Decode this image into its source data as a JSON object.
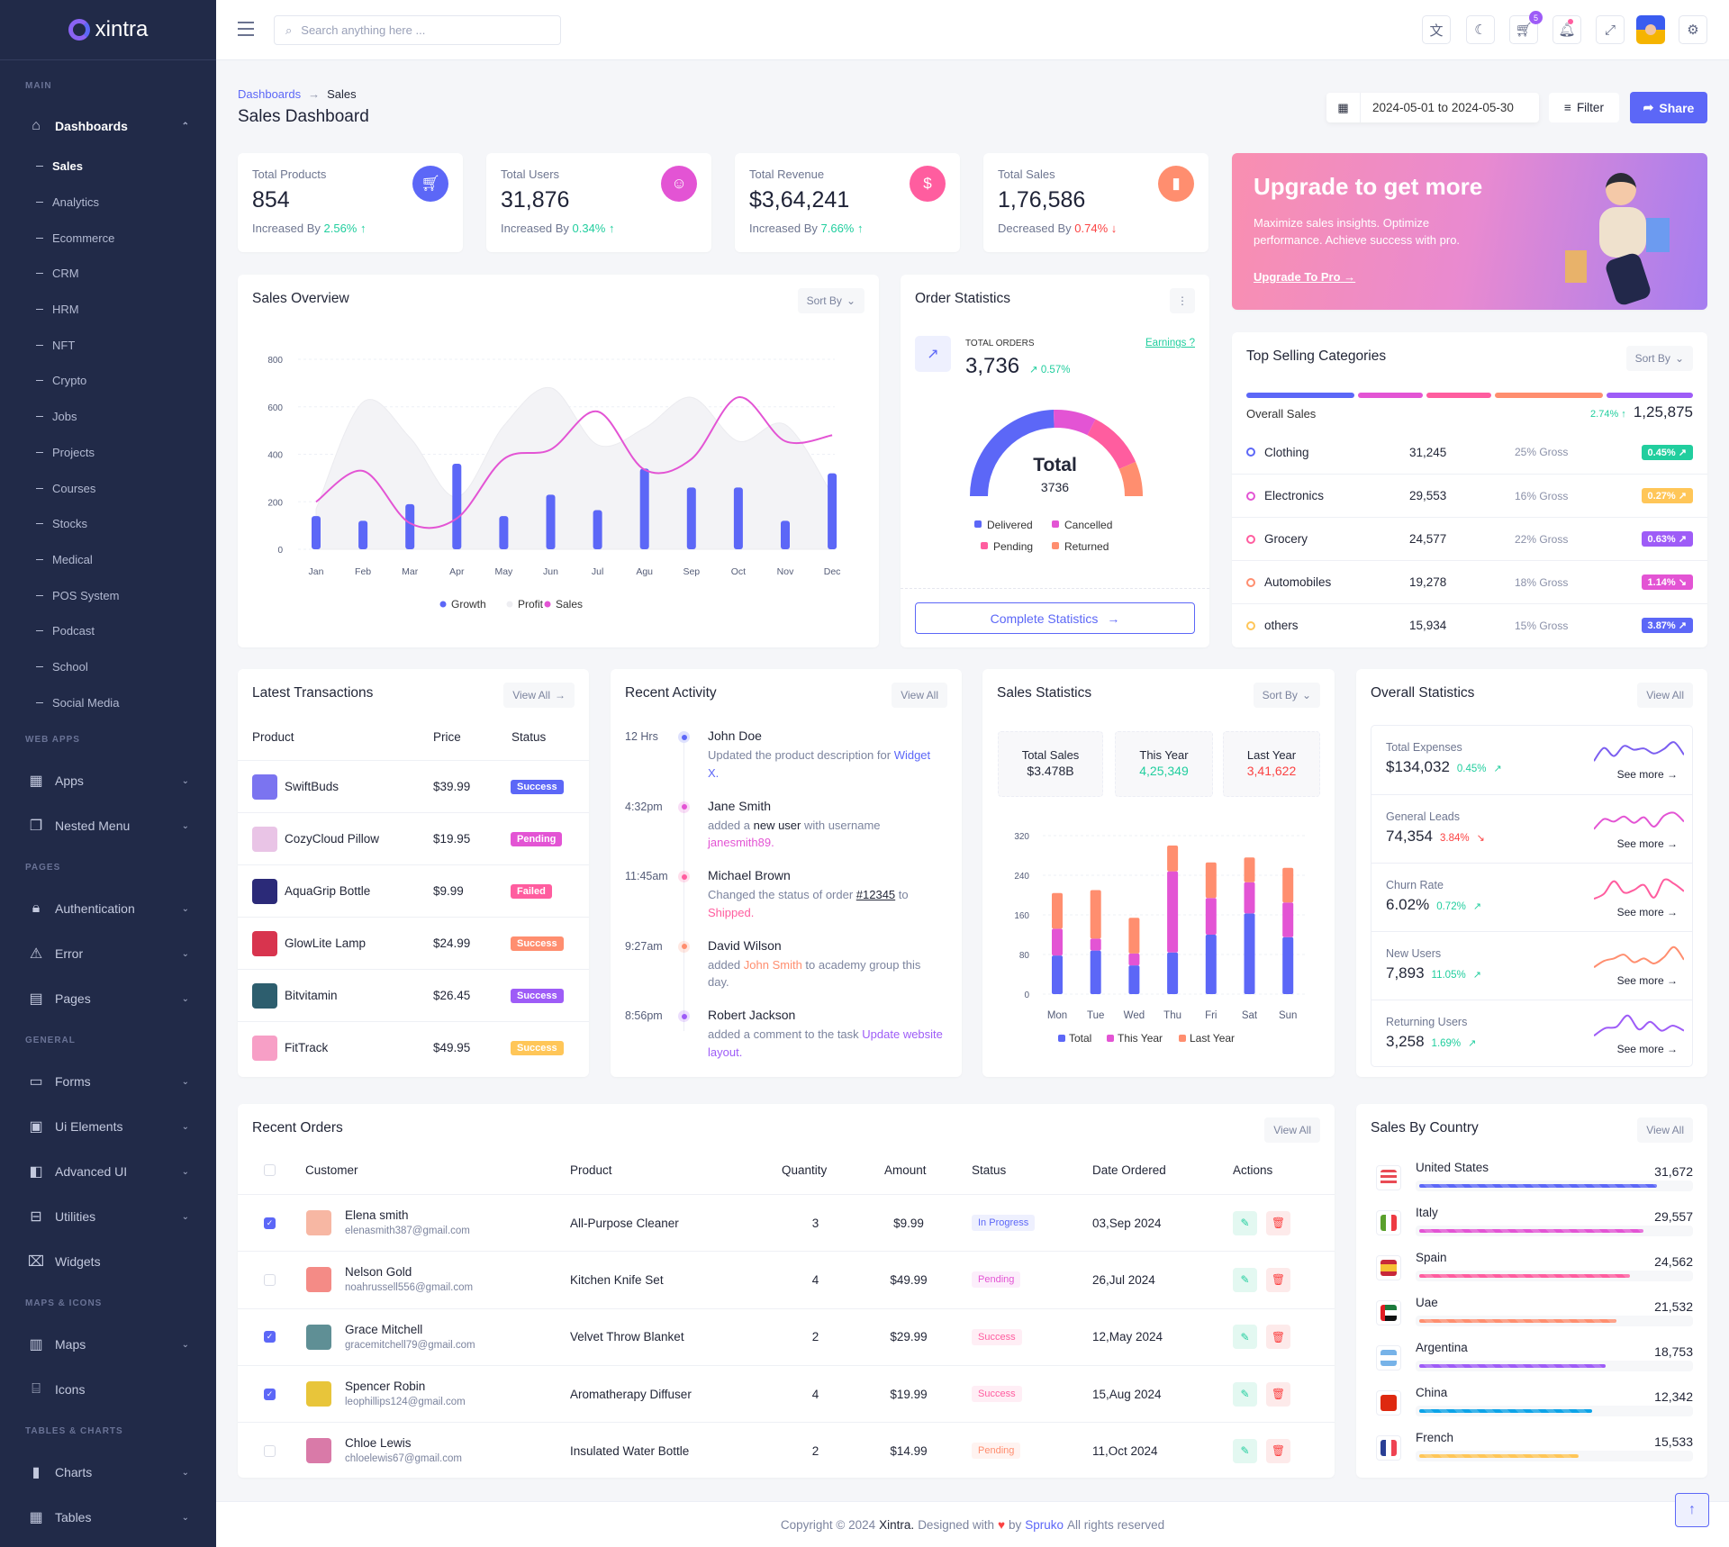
{
  "app": {
    "logo_text": "xintra"
  },
  "header": {
    "search_placeholder": "Search anything here ...",
    "cart_count": "5",
    "icons": [
      "translate-icon",
      "moon-icon",
      "cart-icon",
      "bell-icon",
      "fullscreen-icon",
      "avatar",
      "gear-icon"
    ]
  },
  "sidebar": {
    "sections": [
      {
        "label": "MAIN",
        "items": [
          {
            "label": "Dashboards",
            "icon": "home-icon",
            "expanded": true,
            "children": [
              "Sales",
              "Analytics",
              "Ecommerce",
              "CRM",
              "HRM",
              "NFT",
              "Crypto",
              "Jobs",
              "Projects",
              "Courses",
              "Stocks",
              "Medical",
              "POS System",
              "Podcast",
              "School",
              "Social Media"
            ],
            "active_child": "Sales"
          }
        ]
      },
      {
        "label": "WEB APPS",
        "items": [
          {
            "label": "Apps",
            "icon": "apps-icon",
            "chevron": true
          },
          {
            "label": "Nested Menu",
            "icon": "nested-menu-icon",
            "chevron": true
          }
        ]
      },
      {
        "label": "PAGES",
        "items": [
          {
            "label": "Authentication",
            "icon": "lock-icon",
            "chevron": true
          },
          {
            "label": "Error",
            "icon": "warning-icon",
            "chevron": true
          },
          {
            "label": "Pages",
            "icon": "pages-icon",
            "chevron": true
          }
        ]
      },
      {
        "label": "GENERAL",
        "items": [
          {
            "label": "Forms",
            "icon": "clipboard-icon",
            "chevron": true
          },
          {
            "label": "Ui Elements",
            "icon": "box-icon",
            "chevron": true
          },
          {
            "label": "Advanced UI",
            "icon": "layers-icon",
            "chevron": true
          },
          {
            "label": "Utilities",
            "icon": "inbox-icon",
            "chevron": true
          },
          {
            "label": "Widgets",
            "icon": "gift-icon",
            "chevron": false
          }
        ]
      },
      {
        "label": "MAPS & ICONS",
        "items": [
          {
            "label": "Maps",
            "icon": "map-icon",
            "chevron": true
          },
          {
            "label": "Icons",
            "icon": "store-icon",
            "chevron": false
          }
        ]
      },
      {
        "label": "TABLES & CHARTS",
        "items": [
          {
            "label": "Charts",
            "icon": "bar-chart-icon",
            "chevron": true
          },
          {
            "label": "Tables",
            "icon": "table-icon",
            "chevron": true
          }
        ]
      }
    ]
  },
  "page": {
    "breadcrumb": [
      "Dashboards",
      "Sales"
    ],
    "title": "Sales Dashboard",
    "date_range": "2024-05-01 to 2024-05-30",
    "filter_label": "Filter",
    "share_label": "Share"
  },
  "stats": [
    {
      "label": "Total Products",
      "value": "854",
      "trend_text": "Increased By",
      "change": "2.56%",
      "direction": "up",
      "icon": "cart-icon",
      "color": "#5c67f7"
    },
    {
      "label": "Total Users",
      "value": "31,876",
      "trend_text": "Increased By",
      "change": "0.34%",
      "direction": "up",
      "icon": "users-icon",
      "color": "#e354d4"
    },
    {
      "label": "Total Revenue",
      "value": "$3,64,241",
      "trend_text": "Increased By",
      "change": "7.66%",
      "direction": "up",
      "icon": "dollar-icon",
      "color": "#ff5d9f"
    },
    {
      "label": "Total Sales",
      "value": "1,76,586",
      "trend_text": "Decreased By",
      "change": "0.74%",
      "direction": "down",
      "icon": "bar-chart-icon",
      "color": "#ff8e6f"
    }
  ],
  "banner": {
    "title": "Upgrade to get more",
    "text": "Maximize sales insights. Optimize performance. Achieve success with pro.",
    "link": "Upgrade To Pro"
  },
  "sales_overview": {
    "title": "Sales Overview",
    "sort_label": "Sort By"
  },
  "order_statistics": {
    "title": "Order Statistics",
    "total_label": "TOTAL ORDERS",
    "total_value": "3,736",
    "change": "0.57%",
    "earnings_link": "Earnings ?",
    "center_title": "Total",
    "center_value": "3736",
    "button": "Complete Statistics"
  },
  "top_selling": {
    "title": "Top Selling Categories",
    "sort_label": "Sort By",
    "overall_label": "Overall Sales",
    "overall_change": "2.74%",
    "overall_value": "1,25,875",
    "segments": [
      {
        "share": 25,
        "color": "#5c67f7"
      },
      {
        "share": 15,
        "color": "#e354d4"
      },
      {
        "share": 15,
        "color": "#ff5d9f"
      },
      {
        "share": 25,
        "color": "#ff8e6f"
      },
      {
        "share": 20,
        "color": "#9e5cf7"
      }
    ],
    "rows": [
      {
        "name": "Clothing",
        "value": "31,245",
        "gross": "25% Gross",
        "change": "0.45%",
        "direction": "up",
        "color": "#5c67f7",
        "badge_color": "#21ce9e"
      },
      {
        "name": "Electronics",
        "value": "29,553",
        "gross": "16% Gross",
        "change": "0.27%",
        "direction": "up",
        "color": "#e354d4",
        "badge_color": "#ffc658"
      },
      {
        "name": "Grocery",
        "value": "24,577",
        "gross": "22% Gross",
        "change": "0.63%",
        "direction": "up",
        "color": "#ff5d9f",
        "badge_color": "#9e5cf7"
      },
      {
        "name": "Automobiles",
        "value": "19,278",
        "gross": "18% Gross",
        "change": "1.14%",
        "direction": "down",
        "color": "#ff8e6f",
        "badge_color": "#e354d4"
      },
      {
        "name": "others",
        "value": "15,934",
        "gross": "15% Gross",
        "change": "3.87%",
        "direction": "up",
        "color": "#ffc658",
        "badge_color": "#5c67f7"
      }
    ]
  },
  "transactions": {
    "title": "Latest Transactions",
    "view_all": "View All",
    "columns": [
      "Product",
      "Price",
      "Status"
    ],
    "rows": [
      {
        "product": "SwiftBuds",
        "price": "$39.99",
        "status": "Success",
        "status_color": "#5c67f7",
        "thumb_color": "#7b74f0"
      },
      {
        "product": "CozyCloud Pillow",
        "price": "$19.95",
        "status": "Pending",
        "status_color": "#e354d4",
        "thumb_color": "#e9c4e6"
      },
      {
        "product": "AquaGrip Bottle",
        "price": "$9.99",
        "status": "Failed",
        "status_color": "#ff5d9f",
        "thumb_color": "#2b2a78"
      },
      {
        "product": "GlowLite Lamp",
        "price": "$24.99",
        "status": "Success",
        "status_color": "#ff8e6f",
        "thumb_color": "#d8344e"
      },
      {
        "product": "Bitvitamin",
        "price": "$26.45",
        "status": "Success",
        "status_color": "#9e5cf7",
        "thumb_color": "#2d5e6e"
      },
      {
        "product": "FitTrack",
        "price": "$49.95",
        "status": "Success",
        "status_color": "#ffc658",
        "thumb_color": "#f79fc6"
      }
    ]
  },
  "activity": {
    "title": "Recent Activity",
    "view_all": "View All",
    "items": [
      {
        "time": "12 Hrs",
        "name": "John Doe",
        "color": "#5c67f7",
        "parts": [
          {
            "text": "Updated the product description for "
          },
          {
            "text": "Widget X.",
            "color": "#5c67f7"
          }
        ]
      },
      {
        "time": "4:32pm",
        "name": "Jane Smith",
        "color": "#e354d4",
        "parts": [
          {
            "text": "added a "
          },
          {
            "text": "new user",
            "color": "#232738"
          },
          {
            "text": " with username "
          },
          {
            "text": "janesmith89.",
            "color": "#e354d4"
          }
        ]
      },
      {
        "time": "11:45am",
        "name": "Michael Brown",
        "color": "#ff5d9f",
        "parts": [
          {
            "text": "Changed the status of order "
          },
          {
            "text": "#12345",
            "color": "#232738",
            "underline": true
          },
          {
            "text": " to "
          },
          {
            "text": "Shipped.",
            "color": "#ff5d9f"
          }
        ]
      },
      {
        "time": "9:27am",
        "name": "David Wilson",
        "color": "#ff8e6f",
        "parts": [
          {
            "text": "added "
          },
          {
            "text": "John Smith",
            "color": "#ff8e6f"
          },
          {
            "text": " to academy group this day."
          }
        ]
      },
      {
        "time": "8:56pm",
        "name": "Robert Jackson",
        "color": "#9e5cf7",
        "parts": [
          {
            "text": "added a comment to the task "
          },
          {
            "text": "Update website layout.",
            "color": "#9e5cf7"
          }
        ]
      }
    ]
  },
  "sales_statistics": {
    "title": "Sales Statistics",
    "sort_label": "Sort By",
    "boxes": [
      {
        "label": "Total Sales",
        "value": "$3.478B",
        "color": "#232738"
      },
      {
        "label": "This Year",
        "value": "4,25,349",
        "color": "#21ce9e"
      },
      {
        "label": "Last Year",
        "value": "3,41,622",
        "color": "#fb4242"
      }
    ]
  },
  "overall_statistics": {
    "title": "Overall Statistics",
    "view_all": "View All",
    "see_more": "See more",
    "items": [
      {
        "label": "Total Expenses",
        "value": "$134,032",
        "change": "0.45%",
        "direction": "up",
        "color": "#7b5ef0",
        "sparkline": [
          10,
          62,
          30,
          70,
          55,
          60,
          40,
          58,
          85,
          35
        ]
      },
      {
        "label": "General Leads",
        "value": "74,354",
        "change": "3.84%",
        "direction": "down",
        "color": "#e354d4",
        "sparkline": [
          15,
          55,
          45,
          65,
          40,
          62,
          25,
          68,
          80,
          45
        ]
      },
      {
        "label": "Churn Rate",
        "value": "6.02%",
        "change": "0.72%",
        "direction": "up",
        "color": "#ff5d9f",
        "sparkline": [
          10,
          30,
          80,
          35,
          45,
          65,
          15,
          85,
          70,
          40
        ]
      },
      {
        "label": "New Users",
        "value": "7,893",
        "change": "11.05%",
        "direction": "up",
        "color": "#ff8e6f",
        "sparkline": [
          10,
          35,
          45,
          60,
          30,
          45,
          25,
          50,
          90,
          40
        ]
      },
      {
        "label": "Returning Users",
        "value": "3,258",
        "change": "1.69%",
        "direction": "up",
        "color": "#9e5cf7",
        "sparkline": [
          10,
          40,
          45,
          90,
          35,
          65,
          30,
          50,
          30
        ]
      }
    ]
  },
  "recent_orders": {
    "title": "Recent Orders",
    "view_all": "View All",
    "columns": [
      "Customer",
      "Product",
      "Quantity",
      "Amount",
      "Status",
      "Date Ordered",
      "Actions"
    ],
    "rows": [
      {
        "name": "Elena smith",
        "email": "elenasmith387@gmail.com",
        "product": "All-Purpose Cleaner",
        "quantity": "3",
        "amount": "$9.99",
        "status": "In Progress",
        "status_color": "#5c67f7",
        "date": "03,Sep 2024",
        "checked": true,
        "avatar_color": "#f7b7a3"
      },
      {
        "name": "Nelson Gold",
        "email": "noahrussell556@gmail.com",
        "product": "Kitchen Knife Set",
        "quantity": "4",
        "amount": "$49.99",
        "status": "Pending",
        "status_color": "#e354d4",
        "date": "26,Jul 2024",
        "checked": false,
        "avatar_color": "#f48b86"
      },
      {
        "name": "Grace Mitchell",
        "email": "gracemitchell79@gmail.com",
        "product": "Velvet Throw Blanket",
        "quantity": "2",
        "amount": "$29.99",
        "status": "Success",
        "status_color": "#ff5d9f",
        "date": "12,May 2024",
        "checked": true,
        "avatar_color": "#5f8f95"
      },
      {
        "name": "Spencer Robin",
        "email": "leophillips124@gmail.com",
        "product": "Aromatherapy Diffuser",
        "quantity": "4",
        "amount": "$19.99",
        "status": "Success",
        "status_color": "#ff5d9f",
        "date": "15,Aug 2024",
        "checked": true,
        "avatar_color": "#e8c53a"
      },
      {
        "name": "Chloe Lewis",
        "email": "chloelewis67@gmail.com",
        "product": "Insulated Water Bottle",
        "quantity": "2",
        "amount": "$14.99",
        "status": "Pending",
        "status_color": "#ff8e6f",
        "date": "11,Oct 2024",
        "checked": false,
        "avatar_color": "#d97aa8"
      }
    ]
  },
  "sales_by_country": {
    "title": "Sales By Country",
    "view_all": "View All",
    "rows": [
      {
        "country": "United States",
        "value": "31,672",
        "progress": 88,
        "color": "#5c67f7",
        "flag": "us"
      },
      {
        "country": "Italy",
        "value": "29,557",
        "progress": 83,
        "color": "#e354d4",
        "flag": "it"
      },
      {
        "country": "Spain",
        "value": "24,562",
        "progress": 78,
        "color": "#ff5d9f",
        "flag": "es"
      },
      {
        "country": "Uae",
        "value": "21,532",
        "progress": 73,
        "color": "#ff8e6f",
        "flag": "ae"
      },
      {
        "country": "Argentina",
        "value": "18,753",
        "progress": 69,
        "color": "#9e5cf7",
        "flag": "ar"
      },
      {
        "country": "China",
        "value": "12,342",
        "progress": 64,
        "color": "#0ca3e7",
        "flag": "cn"
      },
      {
        "country": "French",
        "value": "15,533",
        "progress": 59,
        "color": "#ffc658",
        "flag": "fr"
      }
    ]
  },
  "footer": {
    "prefix": "Copyright © 2024",
    "brand": "Xintra.",
    "designed": "Designed with",
    "by": "by",
    "author": "Spruko",
    "suffix": "All rights reserved"
  },
  "colors": {
    "primary": "#5c67f7",
    "secondary": "#e354d4",
    "pink": "#ff5d9f",
    "orange": "#ff8e6f",
    "purple": "#9e5cf7",
    "success": "#21ce9e",
    "danger": "#fb4242",
    "sidebar": "#212a48"
  },
  "chart_data": [
    {
      "type": "bar+line+area",
      "categories": [
        "Jan",
        "Feb",
        "Mar",
        "Apr",
        "May",
        "Jun",
        "Jul",
        "Agu",
        "Sep",
        "Oct",
        "Nov",
        "Dec"
      ],
      "series": [
        {
          "name": "Growth",
          "type": "bar",
          "color": "#5c67f7",
          "values": [
            140,
            120,
            190,
            360,
            140,
            230,
            165,
            340,
            260,
            260,
            120,
            320
          ]
        },
        {
          "name": "Profit",
          "type": "area",
          "color": "#ececf1",
          "values": [
            170,
            620,
            470,
            220,
            520,
            680,
            440,
            510,
            640,
            455,
            525,
            230
          ]
        },
        {
          "name": "Sales",
          "type": "line",
          "color": "#e354d4",
          "values": [
            200,
            330,
            110,
            130,
            380,
            420,
            580,
            335,
            380,
            640,
            455,
            480
          ]
        }
      ],
      "yticks": [
        0,
        200,
        400,
        600,
        800
      ],
      "ylim": [
        0,
        800
      ],
      "grid": true,
      "legend": "bottom"
    },
    {
      "type": "donut-semicircle",
      "labels": [
        "Delivered",
        "Cancelled",
        "Pending",
        "Returned"
      ],
      "shares": [
        49,
        16,
        22,
        13
      ],
      "colors": [
        "#5c67f7",
        "#e354d4",
        "#ff5d9f",
        "#ff8e6f"
      ],
      "legend": "bottom"
    },
    {
      "type": "stacked-bar",
      "categories": [
        "Mon",
        "Tue",
        "Wed",
        "Thu",
        "Fri",
        "Sat",
        "Sun"
      ],
      "series": [
        {
          "name": "Total",
          "color": "#5c67f7",
          "values": [
            78,
            88,
            58,
            84,
            120,
            163,
            115
          ]
        },
        {
          "name": "This Year",
          "color": "#e354d4",
          "values": [
            54,
            24,
            24,
            164,
            74,
            63,
            70
          ]
        },
        {
          "name": "Last Year",
          "color": "#ff8e6f",
          "values": [
            72,
            98,
            72,
            52,
            72,
            50,
            70
          ]
        }
      ],
      "yticks": [
        0,
        80,
        160,
        240,
        320
      ],
      "ylim": [
        0,
        320
      ],
      "grid": true,
      "legend": "bottom"
    }
  ]
}
